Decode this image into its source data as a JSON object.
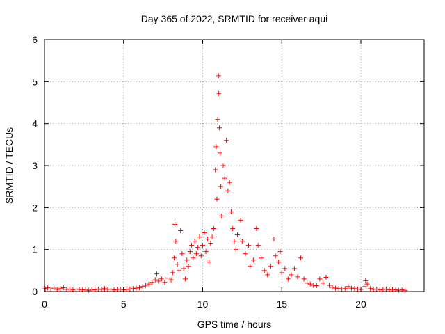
{
  "chart_data": {
    "type": "scatter",
    "title": "Day 365 of 2022, SRMTID for receiver aqui",
    "xlabel": "GPS time / hours",
    "ylabel": "SRMTID / TECUs",
    "xlim": [
      0,
      24
    ],
    "ylim": [
      0,
      6
    ],
    "xticks": [
      0,
      5,
      10,
      15,
      20
    ],
    "yticks": [
      0,
      1,
      2,
      3,
      4,
      5,
      6
    ],
    "grid": true,
    "marker": "+",
    "color": "#ff0000",
    "series": [
      {
        "name": "SRMTID",
        "points": [
          [
            0.05,
            0.07
          ],
          [
            0.2,
            0.09
          ],
          [
            0.4,
            0.06
          ],
          [
            0.6,
            0.08
          ],
          [
            0.8,
            0.05
          ],
          [
            1.0,
            0.07
          ],
          [
            1.2,
            0.09
          ],
          [
            1.4,
            0.05
          ],
          [
            1.6,
            0.06
          ],
          [
            1.8,
            0.04
          ],
          [
            2.0,
            0.06
          ],
          [
            2.2,
            0.05
          ],
          [
            2.4,
            0.04
          ],
          [
            2.6,
            0.05
          ],
          [
            2.8,
            0.03
          ],
          [
            3.0,
            0.05
          ],
          [
            3.2,
            0.04
          ],
          [
            3.4,
            0.06
          ],
          [
            3.6,
            0.05
          ],
          [
            3.8,
            0.07
          ],
          [
            4.0,
            0.05
          ],
          [
            4.2,
            0.06
          ],
          [
            4.4,
            0.04
          ],
          [
            4.6,
            0.05
          ],
          [
            4.8,
            0.06
          ],
          [
            5.0,
            0.04
          ],
          [
            5.2,
            0.05
          ],
          [
            5.4,
            0.06
          ],
          [
            5.6,
            0.07
          ],
          [
            5.8,
            0.08
          ],
          [
            6.0,
            0.09
          ],
          [
            6.2,
            0.12
          ],
          [
            6.4,
            0.15
          ],
          [
            6.6,
            0.18
          ],
          [
            6.8,
            0.22
          ],
          [
            7.0,
            0.28
          ],
          [
            7.1,
            0.42
          ],
          [
            7.2,
            0.25
          ],
          [
            7.4,
            0.3
          ],
          [
            7.6,
            0.22
          ],
          [
            7.8,
            0.32
          ],
          [
            8.0,
            0.28
          ],
          [
            8.1,
            0.45
          ],
          [
            8.2,
            0.8
          ],
          [
            8.25,
            1.6
          ],
          [
            8.3,
            1.2
          ],
          [
            8.4,
            0.65
          ],
          [
            8.5,
            0.5
          ],
          [
            8.6,
            1.45
          ],
          [
            8.7,
            0.9
          ],
          [
            8.8,
            0.55
          ],
          [
            8.9,
            0.3
          ],
          [
            9.0,
            0.75
          ],
          [
            9.1,
            0.6
          ],
          [
            9.2,
            0.95
          ],
          [
            9.3,
            1.1
          ],
          [
            9.4,
            0.8
          ],
          [
            9.5,
            1.2
          ],
          [
            9.6,
            0.9
          ],
          [
            9.7,
            1.05
          ],
          [
            9.8,
            1.3
          ],
          [
            9.9,
            0.85
          ],
          [
            10.0,
            1.1
          ],
          [
            10.1,
            1.4
          ],
          [
            10.2,
            0.95
          ],
          [
            10.3,
            1.25
          ],
          [
            10.4,
            0.7
          ],
          [
            10.5,
            1.15
          ],
          [
            10.6,
            1.3
          ],
          [
            10.7,
            1.5
          ],
          [
            10.8,
            2.9
          ],
          [
            10.85,
            3.45
          ],
          [
            10.9,
            2.2
          ],
          [
            10.95,
            4.1
          ],
          [
            11.0,
            5.14
          ],
          [
            11.02,
            4.72
          ],
          [
            11.05,
            3.9
          ],
          [
            11.1,
            3.3
          ],
          [
            11.15,
            2.5
          ],
          [
            11.2,
            1.8
          ],
          [
            11.3,
            3.0
          ],
          [
            11.4,
            2.7
          ],
          [
            11.5,
            3.6
          ],
          [
            11.6,
            2.4
          ],
          [
            11.7,
            2.6
          ],
          [
            11.8,
            1.9
          ],
          [
            11.9,
            1.5
          ],
          [
            12.0,
            1.2
          ],
          [
            12.1,
            1.0
          ],
          [
            12.2,
            1.35
          ],
          [
            12.4,
            1.7
          ],
          [
            12.5,
            1.2
          ],
          [
            12.7,
            0.9
          ],
          [
            12.9,
            1.1
          ],
          [
            13.0,
            0.6
          ],
          [
            13.2,
            0.75
          ],
          [
            13.4,
            1.5
          ],
          [
            13.5,
            1.1
          ],
          [
            13.7,
            0.8
          ],
          [
            13.9,
            0.5
          ],
          [
            14.1,
            0.4
          ],
          [
            14.3,
            0.6
          ],
          [
            14.5,
            1.25
          ],
          [
            14.6,
            0.85
          ],
          [
            14.8,
            0.7
          ],
          [
            14.9,
            0.95
          ],
          [
            15.0,
            0.45
          ],
          [
            15.2,
            0.55
          ],
          [
            15.4,
            0.3
          ],
          [
            15.6,
            0.4
          ],
          [
            15.8,
            0.55
          ],
          [
            16.0,
            0.35
          ],
          [
            16.2,
            0.8
          ],
          [
            16.4,
            0.3
          ],
          [
            16.6,
            0.2
          ],
          [
            16.8,
            0.18
          ],
          [
            17.0,
            0.15
          ],
          [
            17.2,
            0.14
          ],
          [
            17.4,
            0.3
          ],
          [
            17.6,
            0.2
          ],
          [
            17.8,
            0.34
          ],
          [
            18.0,
            0.15
          ],
          [
            18.2,
            0.1
          ],
          [
            18.4,
            0.08
          ],
          [
            18.6,
            0.07
          ],
          [
            18.8,
            0.06
          ],
          [
            19.0,
            0.07
          ],
          [
            19.2,
            0.12
          ],
          [
            19.4,
            0.08
          ],
          [
            19.6,
            0.07
          ],
          [
            19.8,
            0.06
          ],
          [
            20.0,
            0.05
          ],
          [
            20.2,
            0.12
          ],
          [
            20.3,
            0.26
          ],
          [
            20.4,
            0.18
          ],
          [
            20.6,
            0.07
          ],
          [
            20.8,
            0.05
          ],
          [
            21.0,
            0.06
          ],
          [
            21.2,
            0.04
          ],
          [
            21.4,
            0.05
          ],
          [
            21.6,
            0.06
          ],
          [
            21.8,
            0.04
          ],
          [
            22.0,
            0.05
          ],
          [
            22.2,
            0.04
          ],
          [
            22.4,
            0.03
          ],
          [
            22.6,
            0.04
          ],
          [
            22.8,
            0.03
          ]
        ]
      }
    ]
  }
}
